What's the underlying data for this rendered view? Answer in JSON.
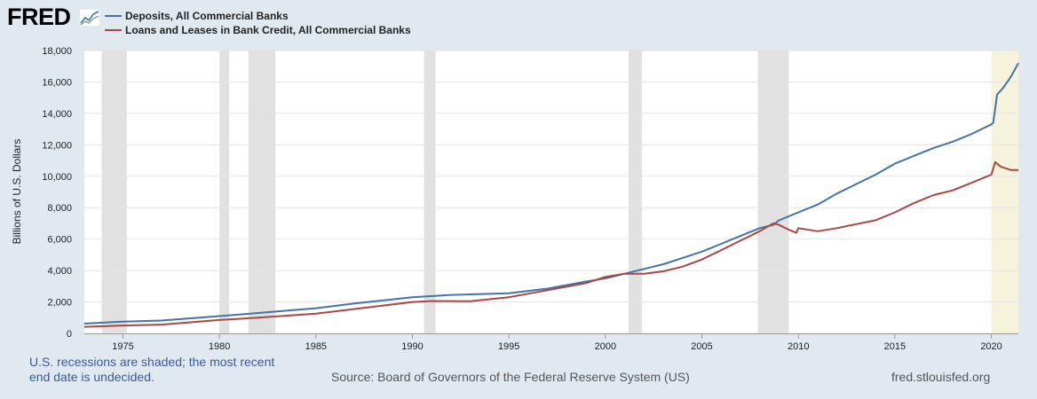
{
  "brand": {
    "name": "FRED"
  },
  "colors": {
    "deposits": "#4572a7",
    "loans": "#aa4643",
    "recession": "#e1e1e1",
    "undecided": "#f5f3dc",
    "background": "#e1e9f0",
    "plot_bg": "#ffffff",
    "note": "#3b5998"
  },
  "footer": {
    "recession_note": "U.S. recessions are shaded; the most recent end date is undecided.",
    "source": "Source: Board of Governors of the Federal Reserve System (US)",
    "url": "fred.stlouisfed.org"
  },
  "chart_data": {
    "type": "line",
    "title": "",
    "xlabel": "",
    "ylabel": "Billions of U.S. Dollars",
    "xlim": [
      1973.0,
      2021.4
    ],
    "ylim": [
      0,
      18000
    ],
    "x_ticks": [
      1975,
      1980,
      1985,
      1990,
      1995,
      2000,
      2005,
      2010,
      2015,
      2020
    ],
    "y_ticks": [
      0,
      2000,
      4000,
      6000,
      8000,
      10000,
      12000,
      14000,
      16000,
      18000
    ],
    "y_tick_labels": [
      "0",
      "2,000",
      "4,000",
      "6,000",
      "8,000",
      "10,000",
      "12,000",
      "14,000",
      "16,000",
      "18,000"
    ],
    "grid": true,
    "legend_position": "top-left",
    "recessions": [
      [
        1973.9,
        1975.2
      ],
      [
        1980.0,
        1980.5
      ],
      [
        1981.5,
        1982.9
      ],
      [
        1990.6,
        1991.2
      ],
      [
        2001.2,
        2001.9
      ],
      [
        2007.9,
        2009.5
      ]
    ],
    "recession_undecided": [
      2020.0,
      2021.4
    ],
    "series": [
      {
        "name": "Deposits, All Commercial Banks",
        "color": "#4572a7",
        "points": [
          [
            1973.0,
            620
          ],
          [
            1975.0,
            750
          ],
          [
            1977.0,
            820
          ],
          [
            1980.0,
            1100
          ],
          [
            1982.0,
            1300
          ],
          [
            1985.0,
            1600
          ],
          [
            1987.0,
            1900
          ],
          [
            1990.0,
            2300
          ],
          [
            1992.0,
            2450
          ],
          [
            1995.0,
            2550
          ],
          [
            1997.0,
            2850
          ],
          [
            1999.0,
            3300
          ],
          [
            2000.0,
            3500
          ],
          [
            2001.0,
            3800
          ],
          [
            2002.0,
            4100
          ],
          [
            2003.0,
            4400
          ],
          [
            2004.0,
            4800
          ],
          [
            2005.0,
            5200
          ],
          [
            2006.0,
            5700
          ],
          [
            2007.0,
            6200
          ],
          [
            2008.0,
            6700
          ],
          [
            2008.7,
            6900
          ],
          [
            2009.0,
            7200
          ],
          [
            2010.0,
            7700
          ],
          [
            2011.0,
            8200
          ],
          [
            2012.0,
            8900
          ],
          [
            2013.0,
            9500
          ],
          [
            2014.0,
            10100
          ],
          [
            2015.0,
            10800
          ],
          [
            2016.0,
            11300
          ],
          [
            2017.0,
            11800
          ],
          [
            2018.0,
            12200
          ],
          [
            2019.0,
            12700
          ],
          [
            2020.0,
            13300
          ],
          [
            2020.1,
            13400
          ],
          [
            2020.3,
            15200
          ],
          [
            2020.6,
            15600
          ],
          [
            2021.0,
            16300
          ],
          [
            2021.4,
            17200
          ]
        ]
      },
      {
        "name": "Loans and Leases in Bank Credit, All Commercial Banks",
        "color": "#aa4643",
        "points": [
          [
            1973.0,
            420
          ],
          [
            1975.0,
            500
          ],
          [
            1977.0,
            560
          ],
          [
            1980.0,
            850
          ],
          [
            1982.0,
            1000
          ],
          [
            1985.0,
            1250
          ],
          [
            1987.0,
            1550
          ],
          [
            1990.0,
            2000
          ],
          [
            1991.0,
            2060
          ],
          [
            1993.0,
            2050
          ],
          [
            1995.0,
            2300
          ],
          [
            1997.0,
            2750
          ],
          [
            1999.0,
            3200
          ],
          [
            2000.0,
            3600
          ],
          [
            2001.0,
            3800
          ],
          [
            2002.0,
            3800
          ],
          [
            2003.0,
            3950
          ],
          [
            2004.0,
            4250
          ],
          [
            2005.0,
            4700
          ],
          [
            2006.0,
            5300
          ],
          [
            2007.0,
            5900
          ],
          [
            2008.0,
            6500
          ],
          [
            2008.7,
            7000
          ],
          [
            2009.0,
            6900
          ],
          [
            2009.5,
            6600
          ],
          [
            2009.9,
            6400
          ],
          [
            2010.0,
            6700
          ],
          [
            2011.0,
            6500
          ],
          [
            2012.0,
            6700
          ],
          [
            2013.0,
            6950
          ],
          [
            2014.0,
            7200
          ],
          [
            2015.0,
            7700
          ],
          [
            2016.0,
            8300
          ],
          [
            2017.0,
            8800
          ],
          [
            2018.0,
            9100
          ],
          [
            2019.0,
            9600
          ],
          [
            2020.0,
            10100
          ],
          [
            2020.2,
            10900
          ],
          [
            2020.5,
            10600
          ],
          [
            2021.0,
            10400
          ],
          [
            2021.4,
            10400
          ]
        ]
      }
    ]
  }
}
